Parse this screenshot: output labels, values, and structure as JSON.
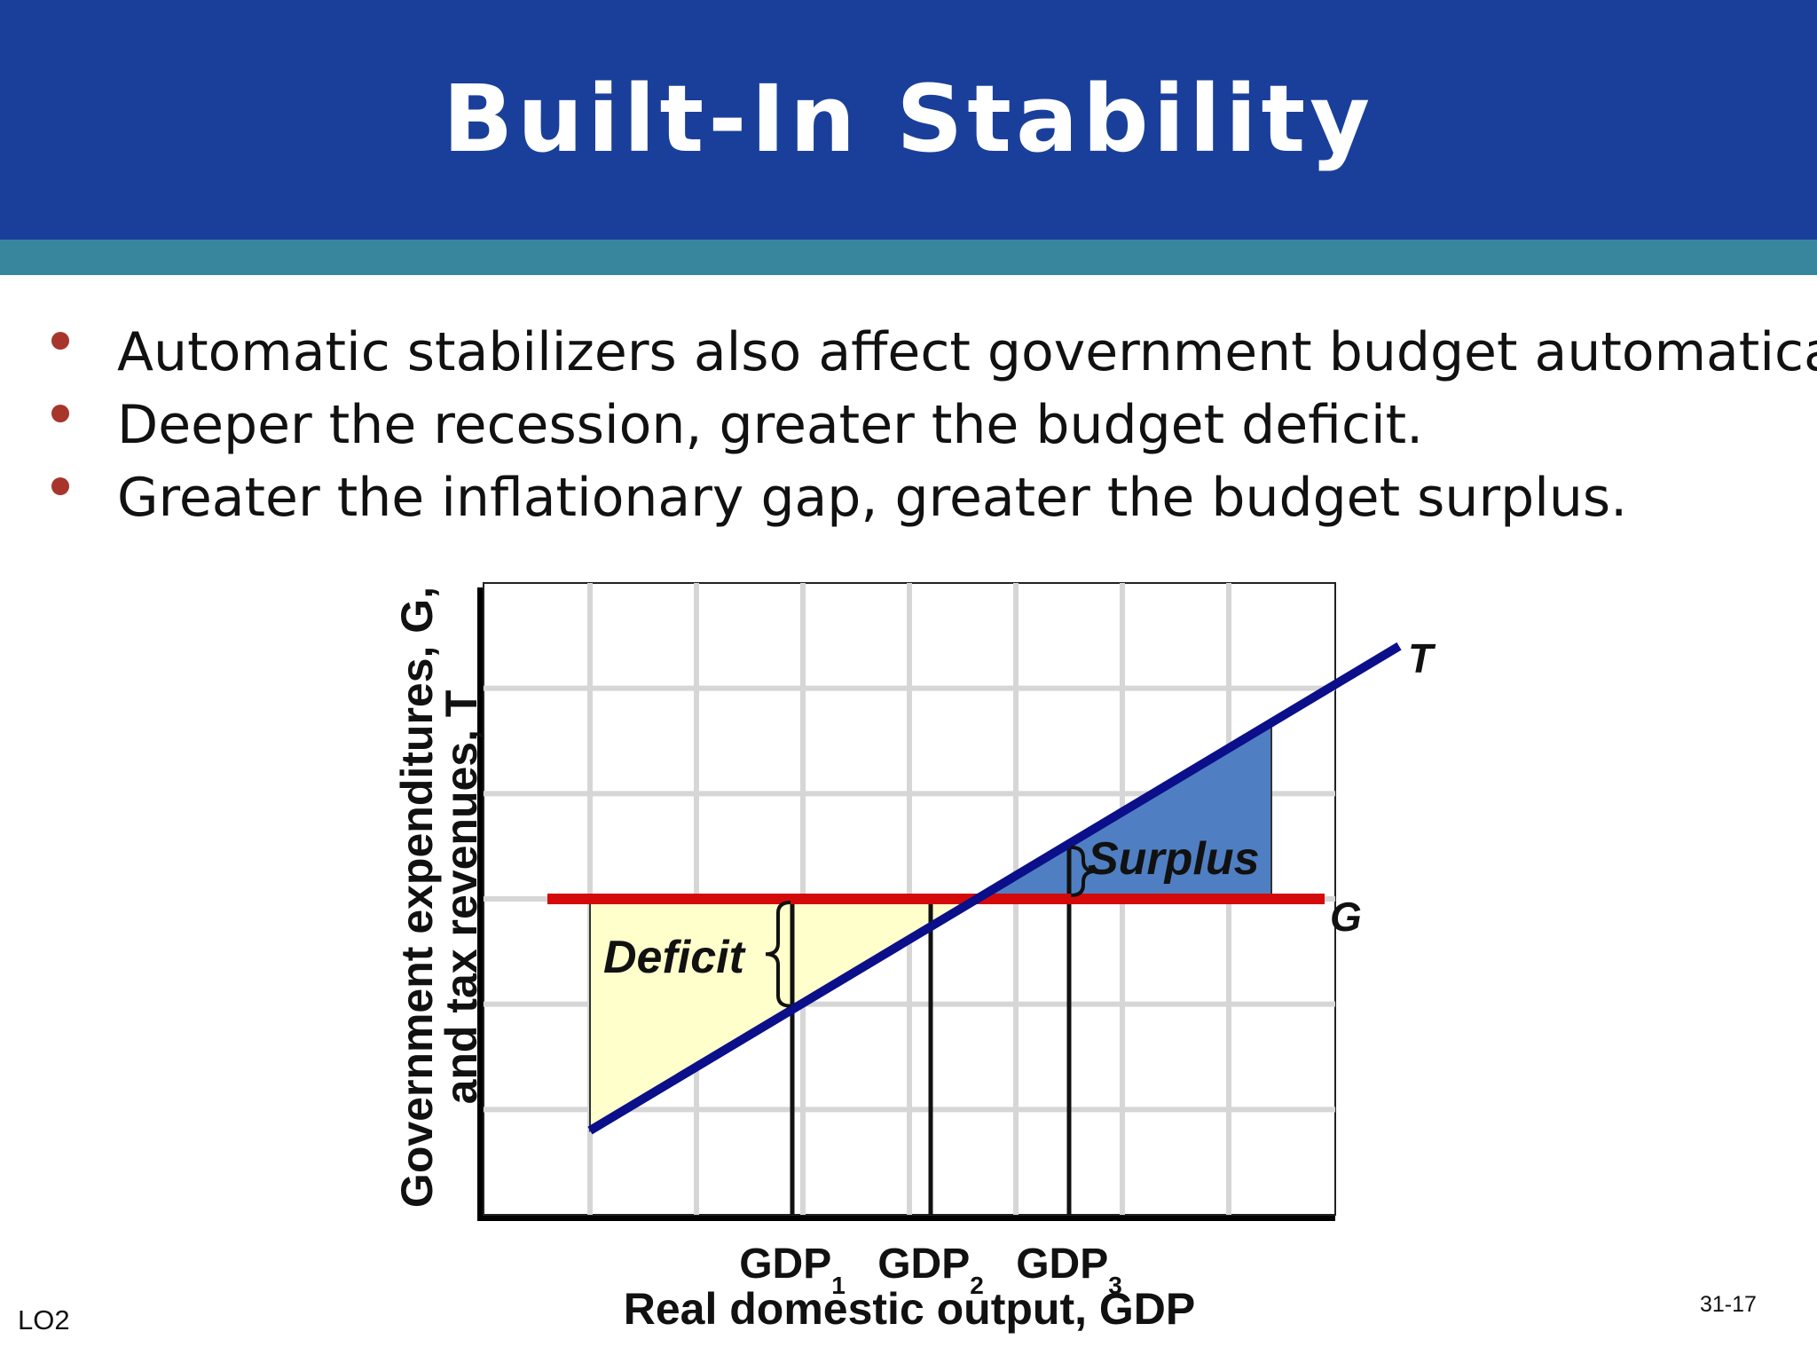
{
  "slide": {
    "title": "Built-In Stability",
    "bullets": [
      "Automatic stabilizers also affect government budget automatically",
      "Deeper the recession, greater the budget deficit.",
      "Greater the inflationary gap, greater the budget surplus."
    ],
    "footer_left": "LO2",
    "page_number": "31-17"
  },
  "colors": {
    "header": "#1a3f9b",
    "header_strip": "#37869d",
    "bullet": "#a8352b",
    "tax_line": "#0b0f8a",
    "government_line": "#d40a0a",
    "surplus_fill": "#4f7fc2",
    "deficit_fill": "#ffffcc"
  },
  "chart_data": {
    "type": "line",
    "ylabel_line1": "Government expenditures, G,",
    "ylabel_line2": "and tax revenues, T",
    "xlabel": "Real domestic output, GDP",
    "series": [
      {
        "name": "T",
        "x": [
          1,
          8.6
        ],
        "y": [
          0.8,
          5.4
        ]
      },
      {
        "name": "G",
        "x": [
          0.6,
          7.9
        ],
        "y": [
          3,
          3
        ]
      }
    ],
    "gdp_ticks": [
      {
        "label": "GDP",
        "sub": "1",
        "x": 2.9
      },
      {
        "label": "GDP",
        "sub": "2",
        "x": 4.2
      },
      {
        "label": "GDP",
        "sub": "3",
        "x": 5.5
      }
    ],
    "regions": [
      {
        "name": "deficit",
        "label": "Deficit"
      },
      {
        "name": "surplus",
        "label": "Surplus"
      }
    ],
    "xlim": [
      0,
      8
    ],
    "ylim": [
      0,
      6
    ],
    "grid": true
  }
}
